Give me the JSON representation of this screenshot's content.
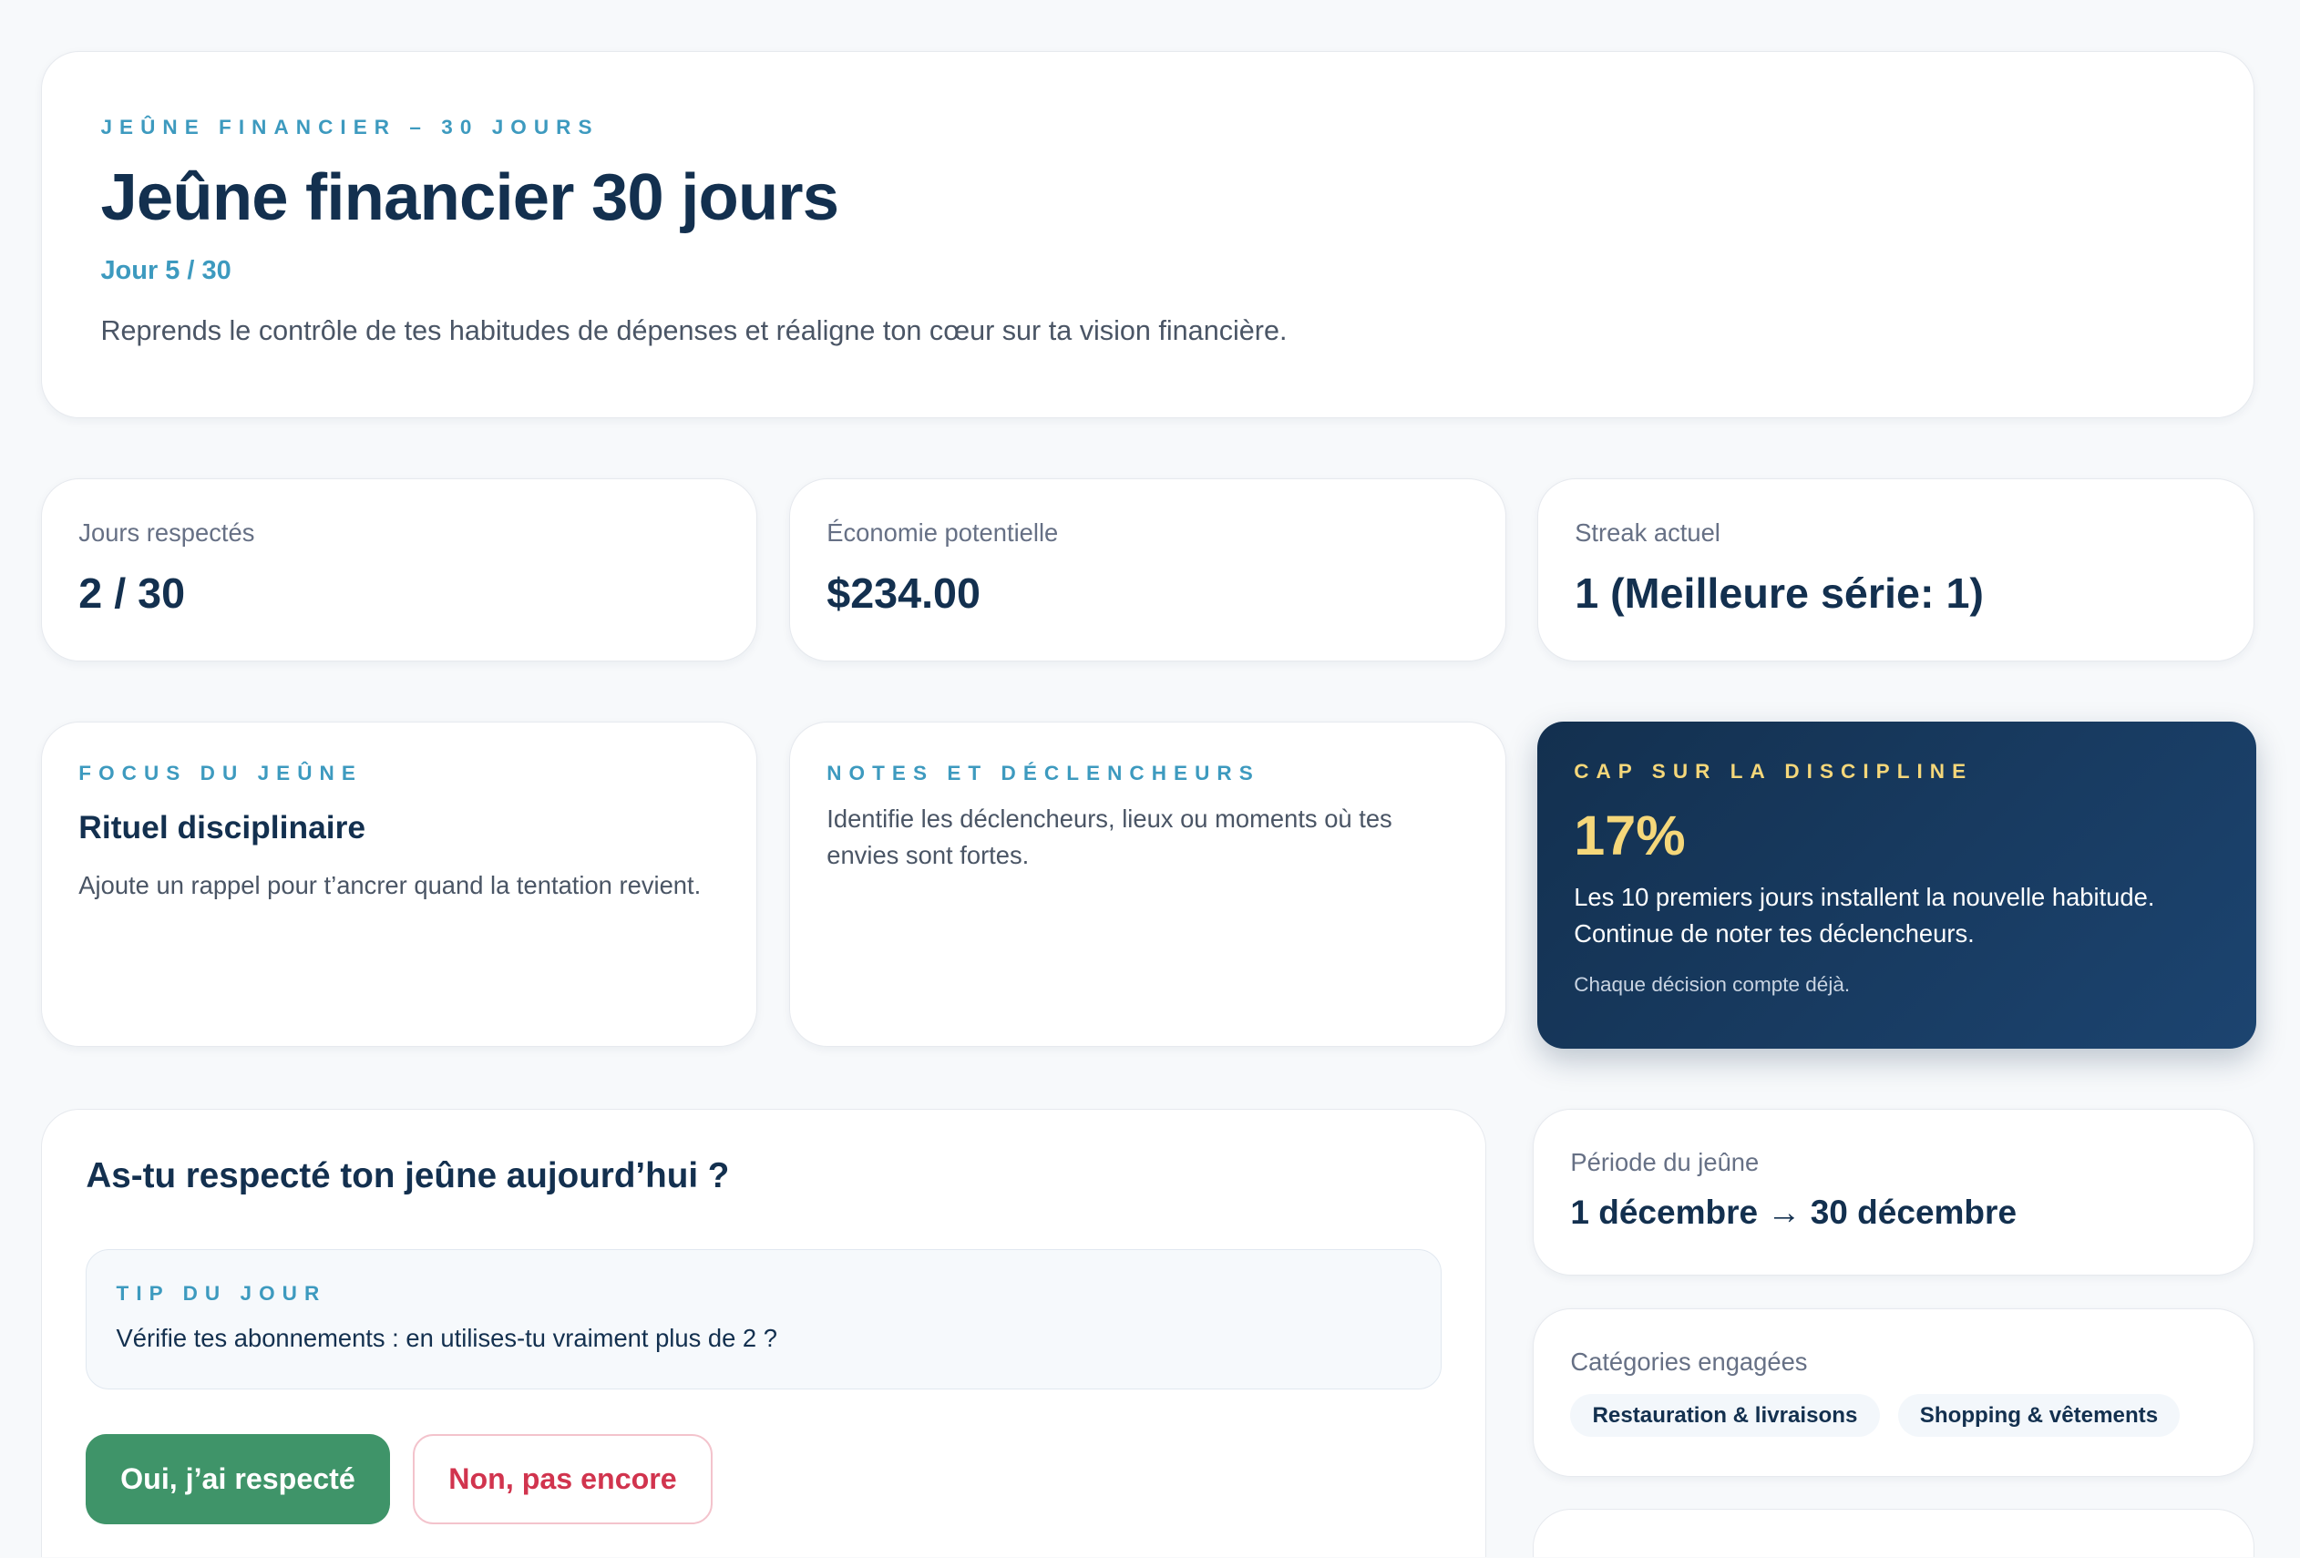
{
  "hero": {
    "eyebrow": "Jeûne financier – 30 jours",
    "title": "Jeûne financier 30 jours",
    "day": "Jour 5 / 30",
    "description": "Reprends le contrôle de tes habitudes de dépenses et réaligne ton cœur sur ta vision financière."
  },
  "stats": [
    {
      "label": "Jours respectés",
      "value": "2 / 30"
    },
    {
      "label": "Économie potentielle",
      "value": "$234.00"
    },
    {
      "label": "Streak actuel",
      "value": "1 (Meilleure série: 1)"
    }
  ],
  "focus": {
    "eyebrow": "Focus du jeûne",
    "title": "Rituel disciplinaire",
    "text": "Ajoute un rappel pour t’ancrer quand la tentation revient."
  },
  "notes": {
    "eyebrow": "Notes et déclencheurs",
    "text": "Identifie les déclencheurs, lieux ou moments où tes envies sont fortes."
  },
  "discipline": {
    "eyebrow": "Cap sur la discipline",
    "percent": "17%",
    "progress_percent": 17,
    "text": "Les 10 premiers jours installent la nouvelle habitude. Continue de noter tes déclencheurs.",
    "footer": "Chaque décision compte déjà.",
    "colors": {
      "bg_start": "#13304f",
      "bg_end": "#1c4470",
      "accent": "#f5d77a"
    }
  },
  "checkin": {
    "question": "As-tu respecté ton jeûne aujourd’hui ?",
    "tip_label": "Tip du jour",
    "tip": "Vérifie tes abonnements : en utilises-tu vraiment plus de 2 ?",
    "yes_label": "Oui, j’ai respecté",
    "no_label": "Non, pas encore",
    "colors": {
      "yes": "#3f9469",
      "no": "#d1344e"
    }
  },
  "period": {
    "label": "Période du jeûne",
    "value": "1 décembre → 30 décembre"
  },
  "categories": {
    "label": "Catégories engagées",
    "items": [
      "Restauration & livraisons",
      "Shopping & vêtements"
    ]
  }
}
